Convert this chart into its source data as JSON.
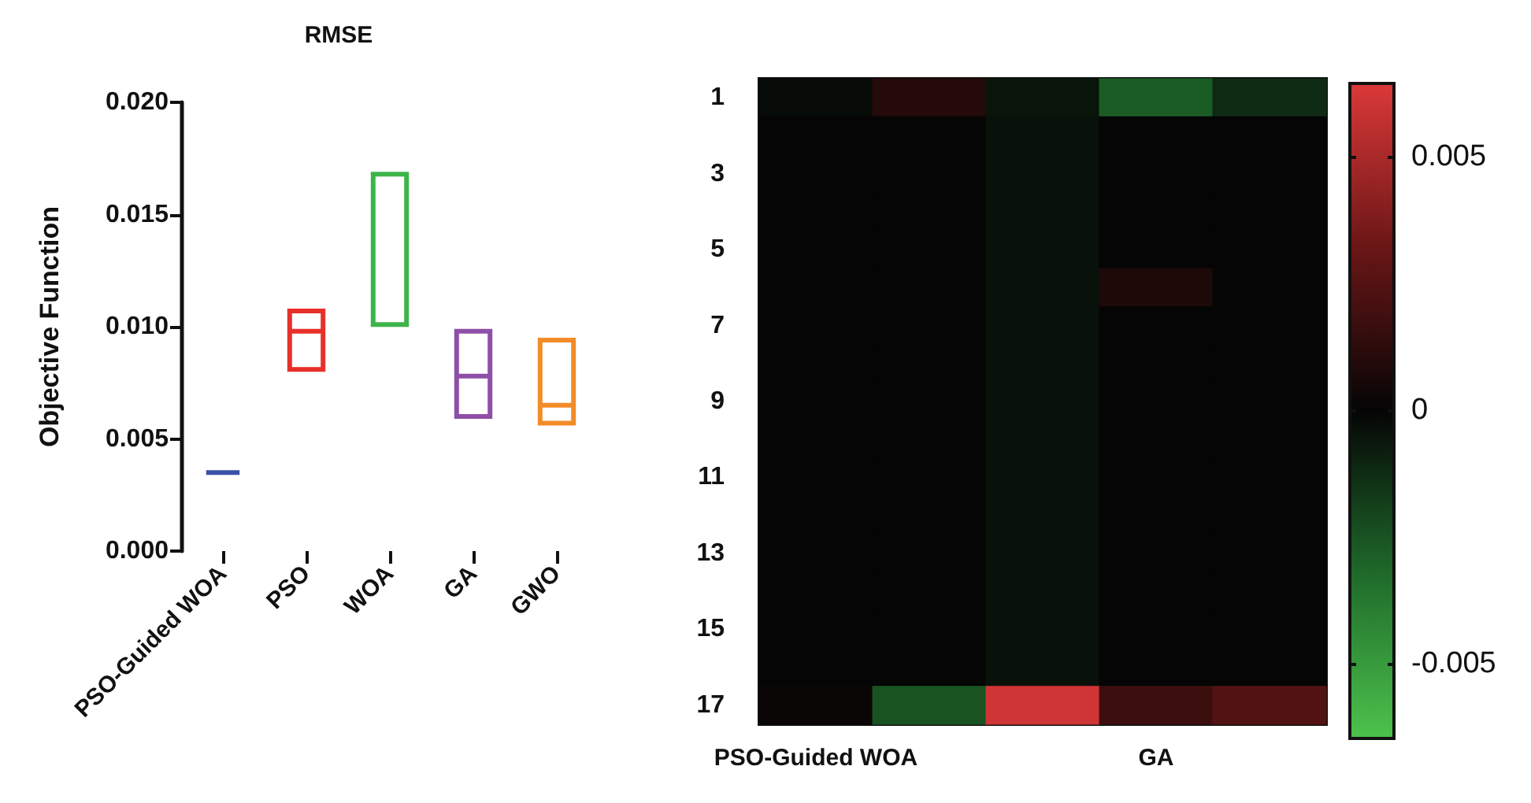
{
  "chart_data": [
    {
      "type": "box",
      "title": "RMSE",
      "ylabel": "Objective Function",
      "categories": [
        "PSO-Guided WOA",
        "PSO",
        "WOA",
        "GA",
        "GWO"
      ],
      "colors": [
        "#3a50a8",
        "#e8302a",
        "#3cb44a",
        "#8e4fa8",
        "#f28c28"
      ],
      "boxes": [
        {
          "low": 0.0035,
          "q1": 0.0035,
          "median": 0.0035,
          "q3": 0.0035,
          "high": 0.0035
        },
        {
          "low": 0.0081,
          "q1": 0.0081,
          "median": 0.0098,
          "q3": 0.0107,
          "high": 0.0107
        },
        {
          "low": 0.0101,
          "q1": 0.0101,
          "median": 0.0101,
          "q3": 0.0168,
          "high": 0.0168
        },
        {
          "low": 0.006,
          "q1": 0.006,
          "median": 0.0078,
          "q3": 0.0098,
          "high": 0.0098
        },
        {
          "low": 0.0057,
          "q1": 0.0057,
          "median": 0.0065,
          "q3": 0.0094,
          "high": 0.0094
        }
      ],
      "ylim": [
        0,
        0.02
      ],
      "yticks": [
        {
          "value": 0,
          "label": "0.000"
        },
        {
          "value": 0.005,
          "label": "0.005"
        },
        {
          "value": 0.01,
          "label": "0.010"
        },
        {
          "value": 0.015,
          "label": "0.015"
        },
        {
          "value": 0.02,
          "label": "0.020"
        }
      ]
    },
    {
      "type": "heatmap",
      "categories": [
        "PSO-Guided WOA",
        null,
        null,
        "GA",
        null
      ],
      "y_categories": [
        "1",
        null,
        "3",
        null,
        "5",
        null,
        "7",
        null,
        "9",
        null,
        "11",
        null,
        "13",
        null,
        "15",
        null,
        "17"
      ],
      "cells": [
        [
          -0.0002,
          0.001,
          -0.0005,
          -0.0028,
          -0.0012
        ],
        [
          0,
          0,
          -0.0004,
          0,
          0
        ],
        [
          0,
          0,
          -0.0004,
          0,
          0
        ],
        [
          0,
          0,
          -0.0004,
          0,
          0
        ],
        [
          0,
          0,
          -0.0004,
          0,
          0
        ],
        [
          0,
          0,
          -0.0004,
          0.0008,
          0
        ],
        [
          0,
          0,
          -0.0004,
          0,
          0
        ],
        [
          0,
          0,
          -0.0004,
          0,
          0
        ],
        [
          0,
          0,
          -0.0004,
          0,
          0
        ],
        [
          0,
          0,
          -0.0004,
          0,
          0
        ],
        [
          0,
          0,
          -0.0004,
          0,
          0
        ],
        [
          0,
          0,
          -0.0004,
          0,
          0
        ],
        [
          0,
          0,
          -0.0004,
          0,
          0
        ],
        [
          0,
          0,
          -0.0004,
          0,
          0
        ],
        [
          0,
          0,
          -0.0004,
          0,
          0
        ],
        [
          0,
          0,
          -0.0004,
          0,
          0
        ],
        [
          0.0002,
          -0.0025,
          0.0062,
          0.0018,
          0.0025
        ]
      ],
      "clim": [
        -0.0065,
        0.0065
      ],
      "cticks": [
        -0.005,
        0,
        0.005
      ]
    }
  ]
}
